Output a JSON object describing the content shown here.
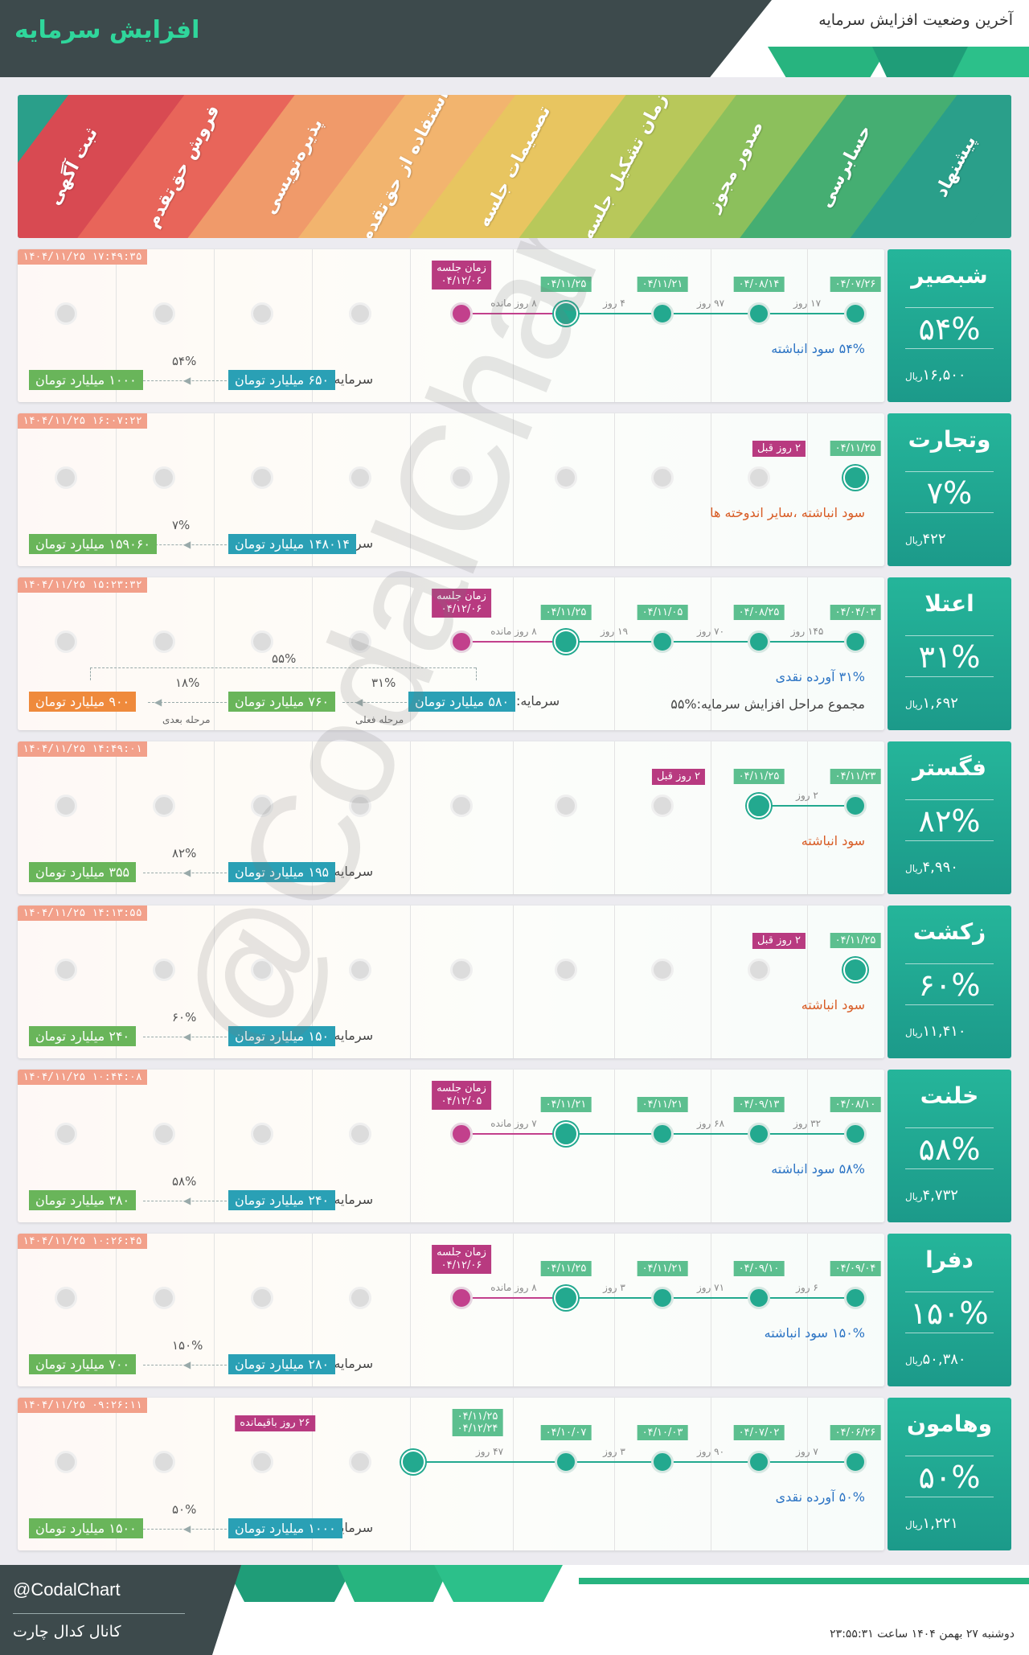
{
  "header": {
    "title": "افزایش سرمایه",
    "subtitle": "آخرین وضعیت افزایش سرمایه"
  },
  "stages": [
    {
      "label": "ثبت آگهی",
      "color": "#d84a52"
    },
    {
      "label": "فروش حق‌تقدم",
      "color": "#e8655a"
    },
    {
      "label": "پذیره‌نویسی",
      "color": "#f09a6a"
    },
    {
      "label": "استفاده از حق‌تقدم",
      "color": "#f2b46e"
    },
    {
      "label": "تصمیمات جلسه",
      "color": "#e8c560"
    },
    {
      "label": "زمان تشکیل جلسه",
      "color": "#b8c85a"
    },
    {
      "label": "صدور مجوز",
      "color": "#8cc05c"
    },
    {
      "label": "حسابرسی",
      "color": "#45ae72"
    },
    {
      "label": "پیشنهاد",
      "color": "#2a9f8a"
    }
  ],
  "rows": [
    {
      "name": "شبصیر",
      "percent": "۵۴%",
      "price": "۱۶,۵۰۰",
      "price_unit": "ریال",
      "timestamp": "۱۴۰۴/۱۱/۲۵ ۱۷:۴۹:۳۵",
      "dates": [
        "۰۴/۰۷/۲۶",
        "۰۴/۰۸/۱۴",
        "۰۴/۱۱/۲۱",
        "۰۴/۱۱/۲۵"
      ],
      "gaps": [
        "۱۷ روز",
        "۹۷ روز",
        "۴ روز"
      ],
      "meeting": {
        "label": "زمان جلسه",
        "date": "۰۴/۱۲/۰۶",
        "remaining": "۸ روز مانده"
      },
      "reason": "۵۴% سود انباشته",
      "reason_color": "blue",
      "capital_label": "سرمایه:",
      "capital_from": "۶۵۰ میلیارد تومان",
      "capital_pct": "۵۴%",
      "capital_to": "۱۰۰۰ میلیارد تومان"
    },
    {
      "name": "وتجارت",
      "percent": "۷%",
      "price": "۴۲۲",
      "price_unit": "ریال",
      "timestamp": "۱۴۰۴/۱۱/۲۵ ۱۶:۰۷:۲۲",
      "dates": [
        "۰۴/۱۱/۲۵"
      ],
      "badge": "۲ روز قبل",
      "reason": "سود انباشته ،سایر اندوخته ها",
      "reason_color": "orange",
      "capital_label": "سرمایه:",
      "capital_from": "۱۴۸۰۱۴ میلیارد تومان",
      "capital_pct": "۷%",
      "capital_to": "۱۵۹۰۶۰ میلیارد تومان"
    },
    {
      "name": "اعتلا",
      "percent": "۳۱%",
      "price": "۱,۶۹۲",
      "price_unit": "ریال",
      "timestamp": "۱۴۰۴/۱۱/۲۵ ۱۵:۲۳:۳۲",
      "dates": [
        "۰۴/۰۴/۰۳",
        "۰۴/۰۸/۲۵",
        "۰۴/۱۱/۰۵",
        "۰۴/۱۱/۲۵"
      ],
      "gaps": [
        "۱۴۵ روز",
        "۷۰ روز",
        "۱۹ روز"
      ],
      "meeting": {
        "label": "زمان جلسه",
        "date": "۰۴/۱۲/۰۶",
        "remaining": "۸ روز مانده"
      },
      "reason": "۳۱% آورده نقدی",
      "reason_color": "blue",
      "total_stages": "مجموع مراحل افزایش سرمایه:%۵۵",
      "total_pct": "۵۵%",
      "capital_label": "سرمایه:",
      "capital_from": "۵۸۰ میلیارد تومان",
      "capital_pct": "۳۱%",
      "capital_mid": "۷۶۰ میلیارد تومان",
      "capital_pct2": "۱۸%",
      "capital_to": "۹۰۰ میلیارد تومان",
      "stage_current": "مرحله فعلی",
      "stage_next": "مرحله بعدی"
    },
    {
      "name": "فگستر",
      "percent": "۸۲%",
      "price": "۴,۹۹۰",
      "price_unit": "ریال",
      "timestamp": "۱۴۰۴/۱۱/۲۵ ۱۴:۴۹:۰۱",
      "dates": [
        "۰۴/۱۱/۲۳",
        "۰۴/۱۱/۲۵"
      ],
      "gaps": [
        "۲ روز"
      ],
      "badge": "۲ روز قبل",
      "reason": "سود انباشته",
      "reason_color": "orange",
      "capital_label": "سرمایه:",
      "capital_from": "۱۹۵ میلیارد تومان",
      "capital_pct": "۸۲%",
      "capital_to": "۳۵۵ میلیارد تومان"
    },
    {
      "name": "زکشت",
      "percent": "۶۰%",
      "price": "۱۱,۴۱۰",
      "price_unit": "ریال",
      "timestamp": "۱۴۰۴/۱۱/۲۵ ۱۴:۱۳:۵۵",
      "dates": [
        "۰۴/۱۱/۲۵"
      ],
      "badge": "۲ روز قبل",
      "reason": "سود انباشته",
      "reason_color": "orange",
      "capital_label": "سرمایه:",
      "capital_from": "۱۵۰ میلیارد تومان",
      "capital_pct": "۶۰%",
      "capital_to": "۲۴۰ میلیارد تومان"
    },
    {
      "name": "خلنت",
      "percent": "۵۸%",
      "price": "۴,۷۳۲",
      "price_unit": "ریال",
      "timestamp": "۱۴۰۴/۱۱/۲۵ ۱۰:۴۴:۰۸",
      "dates": [
        "۰۴/۰۸/۱۰",
        "۰۴/۰۹/۱۳",
        "۰۴/۱۱/۲۱",
        "۰۴/۱۱/۲۱"
      ],
      "gaps": [
        "۳۲ روز",
        "۶۸ روز",
        ""
      ],
      "meeting": {
        "label": "زمان جلسه",
        "date": "۰۴/۱۲/۰۵",
        "remaining": "۷ روز مانده"
      },
      "reason": "۵۸% سود انباشته",
      "reason_color": "blue",
      "capital_label": "سرمایه:",
      "capital_from": "۲۴۰ میلیارد تومان",
      "capital_pct": "۵۸%",
      "capital_to": "۳۸۰ میلیارد تومان"
    },
    {
      "name": "دفرا",
      "percent": "۱۵۰%",
      "price": "۵۰,۳۸۰",
      "price_unit": "ریال",
      "timestamp": "۱۴۰۴/۱۱/۲۵ ۱۰:۲۶:۴۵",
      "dates": [
        "۰۴/۰۹/۰۴",
        "۰۴/۰۹/۱۰",
        "۰۴/۱۱/۲۱",
        "۰۴/۱۱/۲۵"
      ],
      "gaps": [
        "۶ روز",
        "۷۱ روز",
        "۳ روز"
      ],
      "meeting": {
        "label": "زمان جلسه",
        "date": "۰۴/۱۲/۰۶",
        "remaining": "۸ روز مانده"
      },
      "reason": "۱۵۰% سود انباشته",
      "reason_color": "blue",
      "capital_label": "سرمایه:",
      "capital_from": "۲۸۰ میلیارد تومان",
      "capital_pct": "۱۵۰%",
      "capital_to": "۷۰۰ میلیارد تومان"
    },
    {
      "name": "وهامون",
      "percent": "۵۰%",
      "price": "۱,۲۲۱",
      "price_unit": "ریال",
      "timestamp": "۱۴۰۴/۱۱/۲۵ ۰۹:۲۶:۱۱",
      "dates": [
        "۰۴/۰۶/۲۶",
        "۰۴/۰۷/۰۲",
        "۰۴/۱۰/۰۳",
        "۰۴/۱۰/۰۷"
      ],
      "gaps": [
        "۷ روز",
        "۹۰ روز",
        "۳ روز",
        "۴۷ روز"
      ],
      "pref_dates": "۰۴/۱۱/۲۵\n۰۴/۱۲/۲۴",
      "pref_remaining": "۲۶ روز باقیمانده",
      "reason": "۵۰% آورده نقدی",
      "reason_color": "blue",
      "capital_label": "سرمایه:",
      "capital_from": "۱۰۰۰ میلیارد تومان",
      "capital_pct": "۵۰%",
      "capital_to": "۱۵۰۰ میلیارد تومان"
    }
  ],
  "watermark": "@CodalChart",
  "footer": {
    "handle": "@CodalChart",
    "channel": "کانال کدال چارت",
    "datetime": "دوشنبه ۲۷ بهمن ۱۴۰۴ ساعت ۲۳:۵۵:۳۱"
  }
}
